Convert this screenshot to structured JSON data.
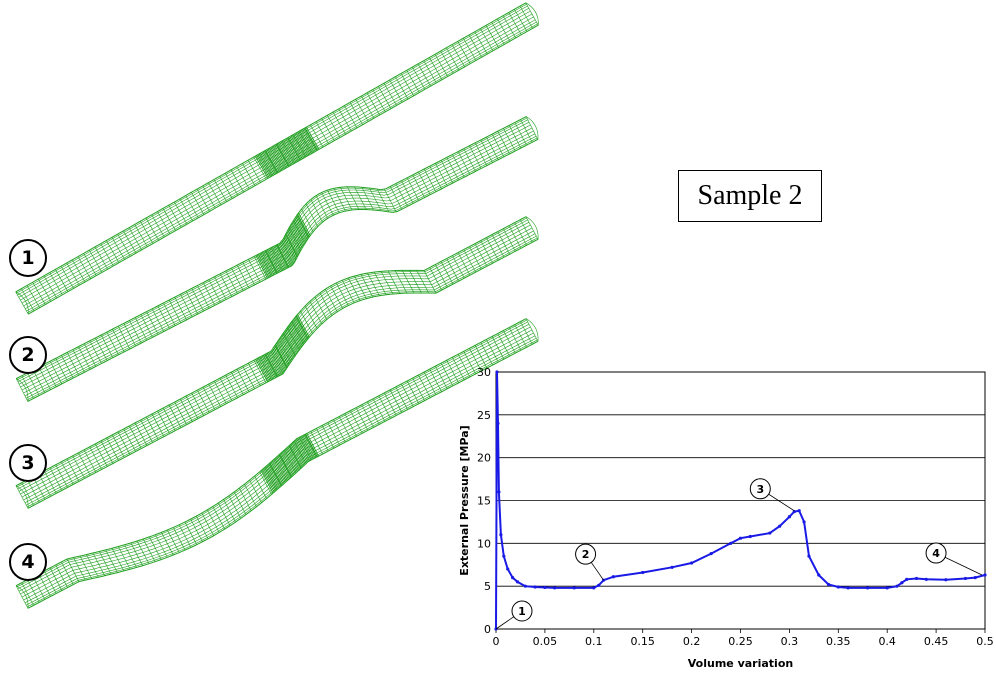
{
  "sample_label": "Sample 2",
  "stages": [
    "1",
    "2",
    "3",
    "4"
  ],
  "colors": {
    "mesh": "#22a022",
    "curve": "#1a1ae6",
    "grid": "#000000"
  },
  "chart_data": {
    "type": "line",
    "title": "",
    "xlabel": "Volume variation",
    "ylabel": "External Pressure [MPa]",
    "xlim": [
      0,
      0.5
    ],
    "ylim": [
      0,
      30
    ],
    "x_ticks": [
      "0",
      "0.05",
      "0.1",
      "0.15",
      "0.2",
      "0.25",
      "0.3",
      "0.35",
      "0.4",
      "0.45",
      "0.5"
    ],
    "y_ticks": [
      "0",
      "5",
      "10",
      "15",
      "20",
      "25",
      "30"
    ],
    "grid": "horizontal",
    "series": [
      {
        "x": [
          0,
          0.001,
          0.002,
          0.003,
          0.005,
          0.008,
          0.012,
          0.017,
          0.022,
          0.03,
          0.04,
          0.05,
          0.06,
          0.08,
          0.1,
          0.105,
          0.11,
          0.12,
          0.15,
          0.18,
          0.2,
          0.22,
          0.24,
          0.25,
          0.26,
          0.28,
          0.29,
          0.3,
          0.305,
          0.31,
          0.315,
          0.32,
          0.33,
          0.34,
          0.35,
          0.36,
          0.38,
          0.4,
          0.41,
          0.415,
          0.42,
          0.43,
          0.44,
          0.46,
          0.48,
          0.49,
          0.5
        ],
        "y": [
          0,
          30,
          24,
          16,
          11,
          8.5,
          7,
          6,
          5.5,
          5,
          4.9,
          4.85,
          4.8,
          4.8,
          4.8,
          5.1,
          5.7,
          6.1,
          6.6,
          7.2,
          7.7,
          8.8,
          10,
          10.6,
          10.8,
          11.2,
          12,
          13.1,
          13.7,
          13.8,
          12.5,
          8.5,
          6.3,
          5.2,
          4.9,
          4.8,
          4.8,
          4.8,
          5.0,
          5.4,
          5.8,
          5.9,
          5.8,
          5.75,
          5.9,
          6.0,
          6.3
        ]
      }
    ],
    "annotations": [
      {
        "label": "1",
        "x": 0.0,
        "y": 0.0
      },
      {
        "label": "2",
        "x": 0.11,
        "y": 5.7
      },
      {
        "label": "3",
        "x": 0.305,
        "y": 13.8
      },
      {
        "label": "4",
        "x": 0.497,
        "y": 6.3
      }
    ]
  }
}
